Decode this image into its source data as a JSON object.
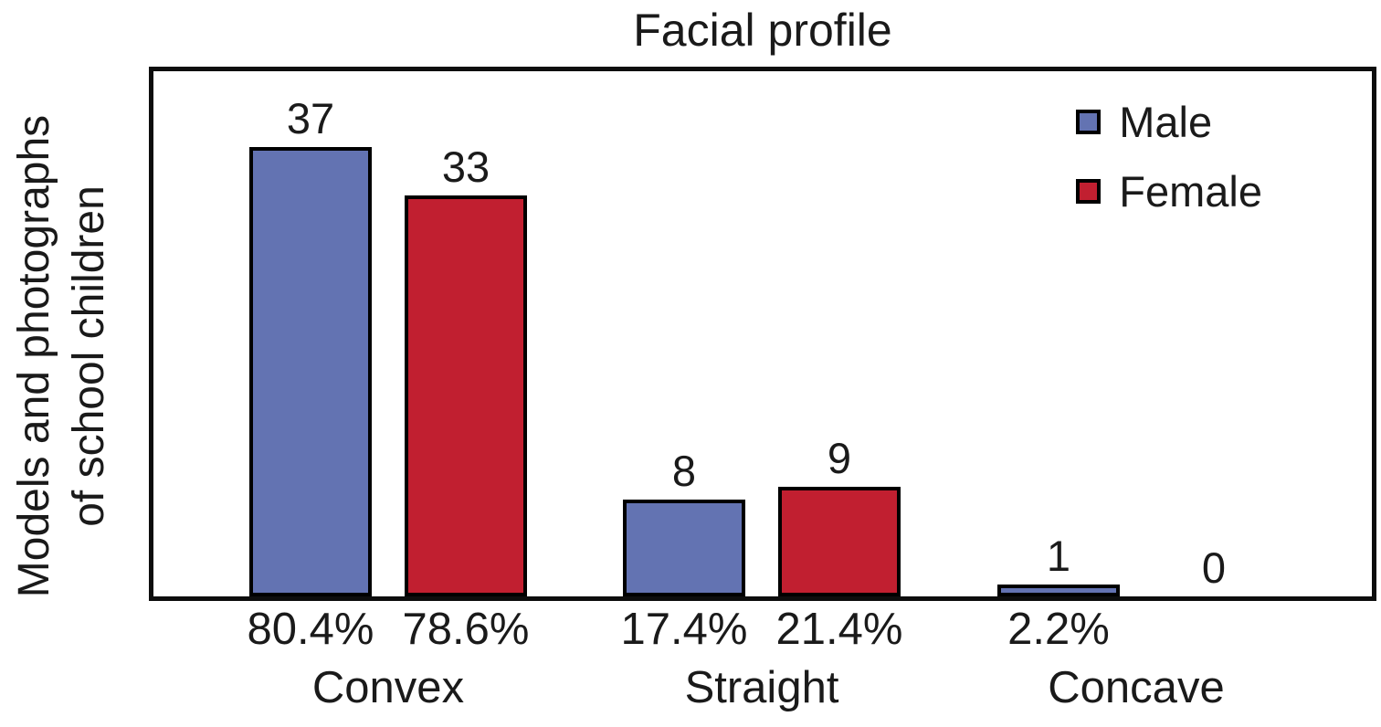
{
  "chart_data": {
    "type": "bar",
    "title": "Facial profile",
    "ylabel_line1": "Models and photographs",
    "ylabel_line2": "of school children",
    "categories": [
      "Convex",
      "Straight",
      "Concave"
    ],
    "series": [
      {
        "name": "Male",
        "color": "#6373B2",
        "values": [
          37,
          8,
          1
        ],
        "percent_labels": [
          "80.4%",
          "17.4%",
          "2.2%"
        ]
      },
      {
        "name": "Female",
        "color": "#C11F30",
        "values": [
          33,
          9,
          0
        ],
        "percent_labels": [
          "78.6%",
          "21.4%",
          ""
        ]
      }
    ],
    "legend": {
      "position": "top-right-inside",
      "entries": [
        "Male",
        "Female"
      ]
    },
    "ylim": [
      0,
      44
    ],
    "grid": false,
    "axis_box": true
  }
}
